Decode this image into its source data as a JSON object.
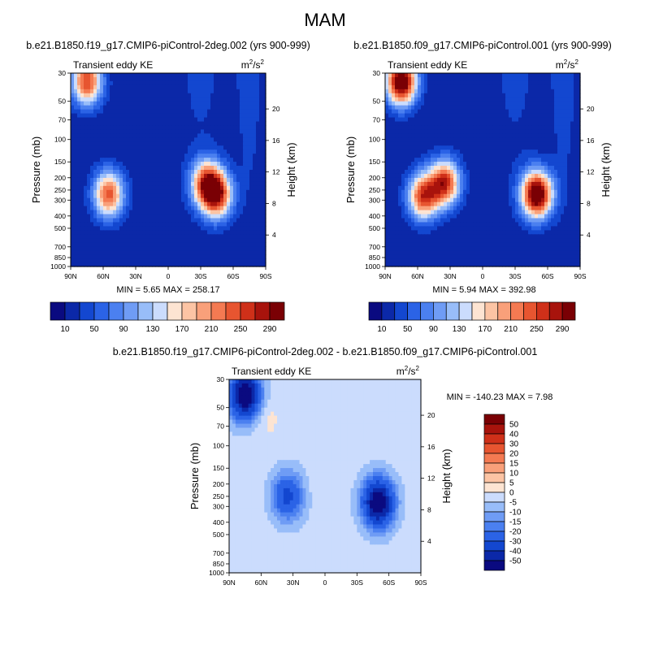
{
  "page": {
    "title": "MAM"
  },
  "chart_data": [
    {
      "type": "heatmap",
      "title": "b.e21.B1850.f19_g17.CMIP6-piControl-2deg.002 (yrs 900-999)",
      "subtitle_left": "Transient eddy KE",
      "units_base": "m",
      "units_exp": "2",
      "units_sep": "/s",
      "ylabel": "Pressure (mb)",
      "ylabel_right": "Height (km)",
      "x_ticks": [
        "90N",
        "60N",
        "30N",
        "0",
        "30S",
        "60S",
        "90S"
      ],
      "y_ticks": [
        "30",
        "50",
        "70",
        "100",
        "150",
        "200",
        "250",
        "300",
        "400",
        "500",
        "700",
        "850",
        "1000"
      ],
      "y_ticks_right": [
        "20",
        "16",
        "12",
        "8",
        "4"
      ],
      "stats": "MIN =   5.65  MAX = 258.17",
      "min": 5.65,
      "max": 258.17,
      "colorbar_labels": [
        "10",
        "50",
        "90",
        "130",
        "170",
        "210",
        "250",
        "290"
      ],
      "colorbar_levels": [
        10,
        30,
        50,
        70,
        90,
        110,
        130,
        150,
        170,
        190,
        210,
        230,
        250,
        270,
        290
      ],
      "features": [
        {
          "lat": -45,
          "pressure": 275,
          "value": 240
        },
        {
          "lat": -35,
          "pressure": 220,
          "value": 210
        },
        {
          "lat": 55,
          "pressure": 270,
          "value": 230
        },
        {
          "lat": 75,
          "pressure": 35,
          "value": 240
        }
      ]
    },
    {
      "type": "heatmap",
      "title": "b.e21.B1850.f09_g17.CMIP6-piControl.001 (yrs 900-999)",
      "subtitle_left": "Transient eddy KE",
      "units_base": "m",
      "units_exp": "2",
      "units_sep": "/s",
      "ylabel": "Pressure (mb)",
      "ylabel_right": "Height (km)",
      "x_ticks": [
        "90N",
        "60N",
        "30N",
        "0",
        "30S",
        "60S",
        "90S"
      ],
      "y_ticks": [
        "30",
        "50",
        "70",
        "100",
        "150",
        "200",
        "250",
        "300",
        "400",
        "500",
        "700",
        "850",
        "1000"
      ],
      "y_ticks_right": [
        "20",
        "16",
        "12",
        "8",
        "4"
      ],
      "stats": "MIN =   5.94  MAX = 392.98",
      "min": 5.94,
      "max": 392.98,
      "colorbar_labels": [
        "10",
        "50",
        "90",
        "130",
        "170",
        "210",
        "250",
        "290"
      ],
      "colorbar_levels": [
        10,
        30,
        50,
        70,
        90,
        110,
        130,
        150,
        170,
        190,
        210,
        230,
        250,
        270,
        290
      ],
      "features": [
        {
          "lat": -50,
          "pressure": 270,
          "value": 330
        },
        {
          "lat": 35,
          "pressure": 220,
          "value": 250
        },
        {
          "lat": 55,
          "pressure": 280,
          "value": 240
        },
        {
          "lat": 75,
          "pressure": 35,
          "value": 330
        }
      ]
    },
    {
      "type": "heatmap",
      "title": "b.e21.B1850.f19_g17.CMIP6-piControl-2deg.002 - b.e21.B1850.f09_g17.CMIP6-piControl.001",
      "subtitle_left": "Transient eddy KE",
      "units_base": "m",
      "units_exp": "2",
      "units_sep": "/s",
      "ylabel": "Pressure (mb)",
      "ylabel_right": "Height (km)",
      "x_ticks": [
        "90N",
        "60N",
        "30N",
        "0",
        "30S",
        "60S",
        "90S"
      ],
      "y_ticks": [
        "30",
        "50",
        "70",
        "100",
        "150",
        "200",
        "250",
        "300",
        "400",
        "500",
        "700",
        "850",
        "1000"
      ],
      "y_ticks_right": [
        "20",
        "16",
        "12",
        "8",
        "4"
      ],
      "stats": "MIN = -140.23  MAX =   7.98",
      "min": -140.23,
      "max": 7.98,
      "colorbar_labels": [
        "50",
        "40",
        "30",
        "20",
        "15",
        "10",
        "5",
        "0",
        "-5",
        "-10",
        "-15",
        "-20",
        "-30",
        "-40",
        "-50"
      ],
      "colorbar_levels": [
        -50,
        -40,
        -30,
        -20,
        -15,
        -10,
        -5,
        0,
        5,
        10,
        15,
        20,
        30,
        40,
        50
      ],
      "features": [
        {
          "lat": 75,
          "pressure": 40,
          "value": -60
        },
        {
          "lat": -50,
          "pressure": 280,
          "value": -60
        },
        {
          "lat": 35,
          "pressure": 250,
          "value": -30
        },
        {
          "lat": 55,
          "pressure": 60,
          "value": 5
        },
        {
          "lat": 0,
          "pressure": 180,
          "value": 3
        }
      ]
    }
  ]
}
